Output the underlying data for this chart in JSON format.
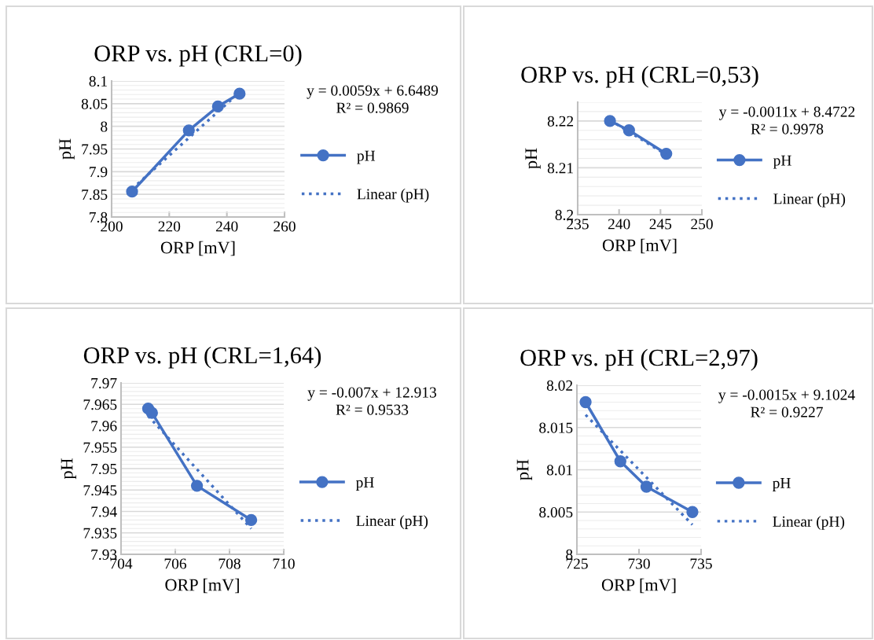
{
  "chart_data": [
    {
      "type": "line",
      "title": "ORP vs. pH (CRL=0)",
      "xlabel": "ORP [mV]",
      "ylabel": "pH",
      "xlim": [
        200,
        260
      ],
      "xticks": [
        200,
        220,
        240,
        260
      ],
      "ylim": [
        7.8,
        8.1
      ],
      "yticks": [
        7.8,
        7.85,
        7.9,
        7.95,
        8,
        8.05,
        8.1
      ],
      "grid": "y",
      "legend": "right",
      "annotations": [
        "y = 0.0059x + 6.6489",
        "R² = 0.9869"
      ],
      "series": [
        {
          "name": "pH",
          "color": "#4472c4",
          "x": [
            207.1,
            226.8,
            236.9,
            244.4
          ],
          "values": [
            7.856,
            7.991,
            8.044,
            8.072
          ],
          "marker": "circle",
          "line_style": "solid"
        },
        {
          "name": "Linear (pH)",
          "color": "#4472c4",
          "x": [
            207.1,
            244.4
          ],
          "values": [
            7.862,
            8.075
          ],
          "marker": "none",
          "line_style": "dotted"
        }
      ]
    },
    {
      "type": "line",
      "title": "ORP vs. pH (CRL=0,53)",
      "xlabel": "ORP [mV]",
      "ylabel": "pH",
      "xlim": [
        235,
        250
      ],
      "xticks": [
        235,
        240,
        245,
        250
      ],
      "ylim": [
        8.2,
        8.224
      ],
      "yticks": [
        8.2,
        8.21,
        8.22
      ],
      "grid": "y",
      "legend": "right",
      "annotations": [
        "y = -0.0011x + 8.4722",
        "R² = 0.9978"
      ],
      "series": [
        {
          "name": "pH",
          "color": "#4472c4",
          "x": [
            238.9,
            241.2,
            245.7
          ],
          "values": [
            8.22,
            8.218,
            8.213
          ],
          "marker": "circle",
          "line_style": "solid"
        },
        {
          "name": "Linear (pH)",
          "color": "#4472c4",
          "x": [
            238.9,
            245.7
          ],
          "values": [
            8.2202,
            8.2128
          ],
          "marker": "none",
          "line_style": "dotted"
        }
      ]
    },
    {
      "type": "line",
      "title": "ORP vs. pH (CRL=1,64)",
      "xlabel": "ORP [mV]",
      "ylabel": "pH",
      "xlim": [
        704,
        710
      ],
      "xticks": [
        704,
        706,
        708,
        710
      ],
      "ylim": [
        7.93,
        7.97
      ],
      "yticks": [
        7.93,
        7.935,
        7.94,
        7.945,
        7.95,
        7.955,
        7.96,
        7.965,
        7.97
      ],
      "grid": "y",
      "legend": "right",
      "annotations": [
        "y = -0.007x + 12.913",
        "R² = 0.9533"
      ],
      "series": [
        {
          "name": "pH",
          "color": "#4472c4",
          "x": [
            705.0,
            705.14,
            706.8,
            708.8
          ],
          "values": [
            7.964,
            7.963,
            7.946,
            7.938
          ],
          "marker": "circle",
          "line_style": "solid"
        },
        {
          "name": "Linear (pH)",
          "color": "#4472c4",
          "x": [
            705.0,
            708.8
          ],
          "values": [
            7.9623,
            7.936
          ],
          "marker": "none",
          "line_style": "dotted"
        }
      ]
    },
    {
      "type": "line",
      "title": "ORP vs. pH (CRL=2,97)",
      "xlabel": "ORP [mV]",
      "ylabel": "pH",
      "xlim": [
        725,
        735
      ],
      "xticks": [
        725,
        730,
        735
      ],
      "ylim": [
        8,
        8.02
      ],
      "yticks": [
        8,
        8.005,
        8.01,
        8.015,
        8.02
      ],
      "grid": "y",
      "legend": "right",
      "annotations": [
        "y = -0.0015x + 9.1024",
        "R² = 0.9227"
      ],
      "series": [
        {
          "name": "pH",
          "color": "#4472c4",
          "x": [
            725.7,
            728.5,
            730.6,
            734.3
          ],
          "values": [
            8.018,
            8.011,
            8.008,
            8.005
          ],
          "marker": "circle",
          "line_style": "solid"
        },
        {
          "name": "Linear (pH)",
          "color": "#4472c4",
          "x": [
            725.7,
            734.3
          ],
          "values": [
            8.0165,
            8.0035
          ],
          "marker": "none",
          "line_style": "dotted"
        }
      ]
    }
  ]
}
